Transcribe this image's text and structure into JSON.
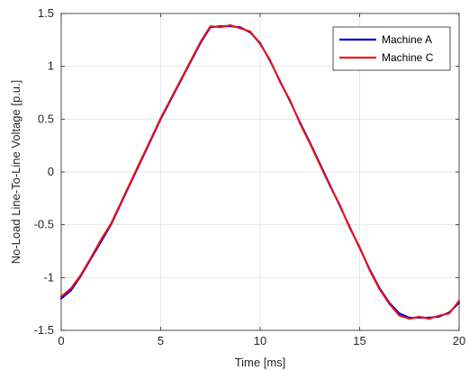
{
  "chart_data": {
    "type": "line",
    "title": "",
    "xlabel": "Time [ms]",
    "ylabel": "No-Load Line-To-Line Voltage [p.u.]",
    "xlim": [
      0,
      20
    ],
    "ylim": [
      -1.5,
      1.5
    ],
    "xticks": [
      0,
      5,
      10,
      15,
      20
    ],
    "xtick_labels": [
      "0",
      "5",
      "10",
      "15",
      "20"
    ],
    "yticks": [
      -1.5,
      -1,
      -0.5,
      0,
      0.5,
      1,
      1.5
    ],
    "ytick_labels": [
      "-1.5",
      "-1",
      "-0.5",
      "0",
      "0.5",
      "1",
      "1.5"
    ],
    "grid": true,
    "legend_position": "top-right",
    "series": [
      {
        "name": "Machine A",
        "color": "#0000cc",
        "x": [
          0,
          0.5,
          1,
          1.5,
          2,
          2.5,
          3,
          3.5,
          4,
          4.5,
          5,
          5.5,
          6,
          6.5,
          7,
          7.5,
          8,
          8.5,
          9,
          9.5,
          10,
          10.5,
          11,
          11.5,
          12,
          12.5,
          13,
          13.5,
          14,
          14.5,
          15,
          15.5,
          16,
          16.5,
          17,
          17.5,
          18,
          18.5,
          19,
          19.5,
          20
        ],
        "y": [
          -1.2,
          -1.12,
          -0.98,
          -0.82,
          -0.66,
          -0.5,
          -0.3,
          -0.1,
          0.1,
          0.3,
          0.5,
          0.68,
          0.86,
          1.04,
          1.22,
          1.37,
          1.38,
          1.38,
          1.37,
          1.32,
          1.22,
          1.05,
          0.86,
          0.67,
          0.47,
          0.28,
          0.08,
          -0.12,
          -0.32,
          -0.52,
          -0.72,
          -0.92,
          -1.1,
          -1.24,
          -1.34,
          -1.38,
          -1.38,
          -1.38,
          -1.37,
          -1.33,
          -1.24
        ]
      },
      {
        "name": "Machine C",
        "color": "#ee1111",
        "x": [
          0,
          0.5,
          1,
          1.5,
          2,
          2.5,
          3,
          3.5,
          4,
          4.5,
          5,
          5.5,
          6,
          6.5,
          7,
          7.5,
          8,
          8.5,
          9,
          9.5,
          10,
          10.5,
          11,
          11.5,
          12,
          12.5,
          13,
          13.5,
          14,
          14.5,
          15,
          15.5,
          16,
          16.5,
          17,
          17.5,
          18,
          18.5,
          19,
          19.5,
          20
        ],
        "y": [
          -1.18,
          -1.1,
          -0.97,
          -0.81,
          -0.64,
          -0.49,
          -0.29,
          -0.09,
          0.11,
          0.31,
          0.51,
          0.69,
          0.87,
          1.05,
          1.23,
          1.38,
          1.37,
          1.39,
          1.36,
          1.33,
          1.21,
          1.06,
          0.85,
          0.68,
          0.46,
          0.27,
          0.07,
          -0.13,
          -0.31,
          -0.53,
          -0.71,
          -0.93,
          -1.11,
          -1.25,
          -1.36,
          -1.39,
          -1.37,
          -1.39,
          -1.36,
          -1.34,
          -1.22
        ]
      }
    ]
  }
}
